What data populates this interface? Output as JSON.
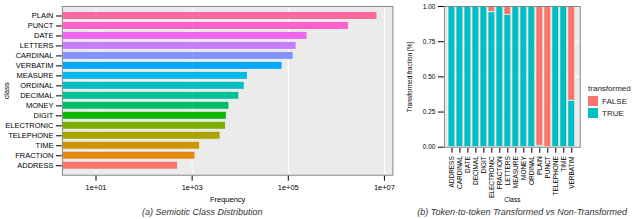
{
  "chart_data": [
    {
      "type": "bar",
      "orientation": "horizontal",
      "log": "x",
      "grid": true,
      "title": "(a) Semiotic Class Distribution",
      "x_label": "Frequency",
      "y_label": "class",
      "categories": [
        "PLAIN",
        "PUNCT",
        "DATE",
        "LETTERS",
        "CARDINAL",
        "VERBATIM",
        "MEASURE",
        "ORDINAL",
        "DECIMAL",
        "MONEY",
        "DIGIT",
        "ELECTRONIC",
        "TELEPHONE",
        "TIME",
        "FRACTION",
        "ADDRESS"
      ],
      "values": [
        7350000,
        1880000,
        258000,
        152000,
        133000,
        78000,
        14800,
        12700,
        9800,
        6100,
        5400,
        5200,
        4000,
        1500,
        1200,
        522
      ],
      "colors": [
        "#FF68A1",
        "#FF61CC",
        "#ED68ED",
        "#C77CFF",
        "#8494FF",
        "#00A9FF",
        "#00B8E7",
        "#00BFC4",
        "#00C19A",
        "#00BE67",
        "#0CB702",
        "#7CAE00",
        "#ABA300",
        "#CD9600",
        "#E68613",
        "#F8766D"
      ],
      "xlim": [
        2,
        15000000
      ],
      "xticks": [
        {
          "value": 10,
          "label": "1e+01"
        },
        {
          "value": 1000,
          "label": "1e+03"
        },
        {
          "value": 100000,
          "label": "1e+05"
        },
        {
          "value": 10000000,
          "label": "1e+07"
        }
      ]
    },
    {
      "type": "bar",
      "stacked": true,
      "grid": true,
      "legend": "right",
      "title": "(b) Token-to-token Transformed vs Non-Transformed",
      "x_label": "Class",
      "y_label": "Transformed fraction [%]",
      "legend_title": "transformed",
      "categories": [
        "ADDRESS",
        "CARDINAL",
        "DATE",
        "DECIMAL",
        "DIGIT",
        "ELECTRONIC",
        "FRACTION",
        "LETTERS",
        "MEASURE",
        "MONEY",
        "ORDINAL",
        "PLAIN",
        "PUNCT",
        "TELEPHONE",
        "TIME",
        "VERBATIM"
      ],
      "series": [
        {
          "name": "FALSE",
          "color": "#F8766D",
          "values": [
            0,
            0,
            0,
            0,
            0,
            0.04,
            0,
            0.06,
            0,
            0,
            0,
            0.99,
            1,
            0,
            0,
            0.67
          ]
        },
        {
          "name": "TRUE",
          "color": "#00BFC4",
          "values": [
            1,
            1,
            1,
            1,
            1,
            0.96,
            1,
            0.94,
            1,
            1,
            1,
            0.01,
            0,
            1,
            1,
            0.33
          ]
        }
      ],
      "ylim": [
        0,
        1
      ],
      "yticks": [
        {
          "value": 0,
          "label": "0.00"
        },
        {
          "value": 0.25,
          "label": "0.25"
        },
        {
          "value": 0.5,
          "label": "0.50"
        },
        {
          "value": 0.75,
          "label": "0.75"
        },
        {
          "value": 1,
          "label": "1.00"
        }
      ]
    }
  ]
}
